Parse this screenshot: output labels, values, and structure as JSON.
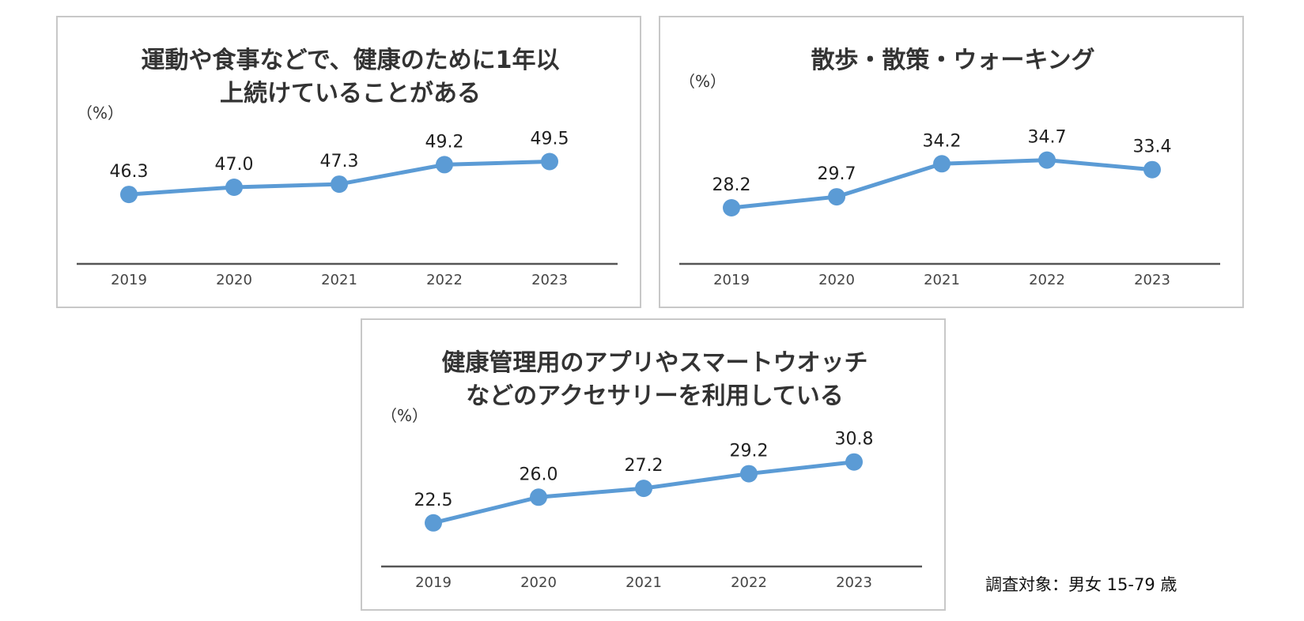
{
  "chart_data": [
    {
      "type": "line",
      "title": [
        "運動や食事などで、健康のために1年以",
        "上続けていることがある"
      ],
      "ylabel": "（%）",
      "categories": [
        "2019",
        "2020",
        "2021",
        "2022",
        "2023"
      ],
      "values": [
        46.3,
        47.0,
        47.3,
        49.2,
        49.5
      ],
      "value_labels": [
        "46.3",
        "47.0",
        "47.3",
        "49.2",
        "49.5"
      ],
      "ylim": [
        42,
        52
      ],
      "grid": false,
      "color": "#5b9bd5"
    },
    {
      "type": "line",
      "title": [
        "散歩・散策・ウォーキング"
      ],
      "ylabel": "（%）",
      "categories": [
        "2019",
        "2020",
        "2021",
        "2022",
        "2023"
      ],
      "values": [
        28.2,
        29.7,
        34.2,
        34.7,
        33.4
      ],
      "value_labels": [
        "28.2",
        "29.7",
        "34.2",
        "34.7",
        "33.4"
      ],
      "ylim": [
        24,
        38
      ],
      "grid": false,
      "color": "#5b9bd5"
    },
    {
      "type": "line",
      "title": [
        "健康管理用のアプリやスマートウオッチ",
        "などのアクセサリーを利用している"
      ],
      "ylabel": "（%）",
      "categories": [
        "2019",
        "2020",
        "2021",
        "2022",
        "2023"
      ],
      "values": [
        22.5,
        26.0,
        27.2,
        29.2,
        30.8
      ],
      "value_labels": [
        "22.5",
        "26.0",
        "27.2",
        "29.2",
        "30.8"
      ],
      "ylim": [
        20,
        34
      ],
      "grid": false,
      "color": "#5b9bd5"
    }
  ],
  "footnote": "調査対象：男女 15-79 歳"
}
